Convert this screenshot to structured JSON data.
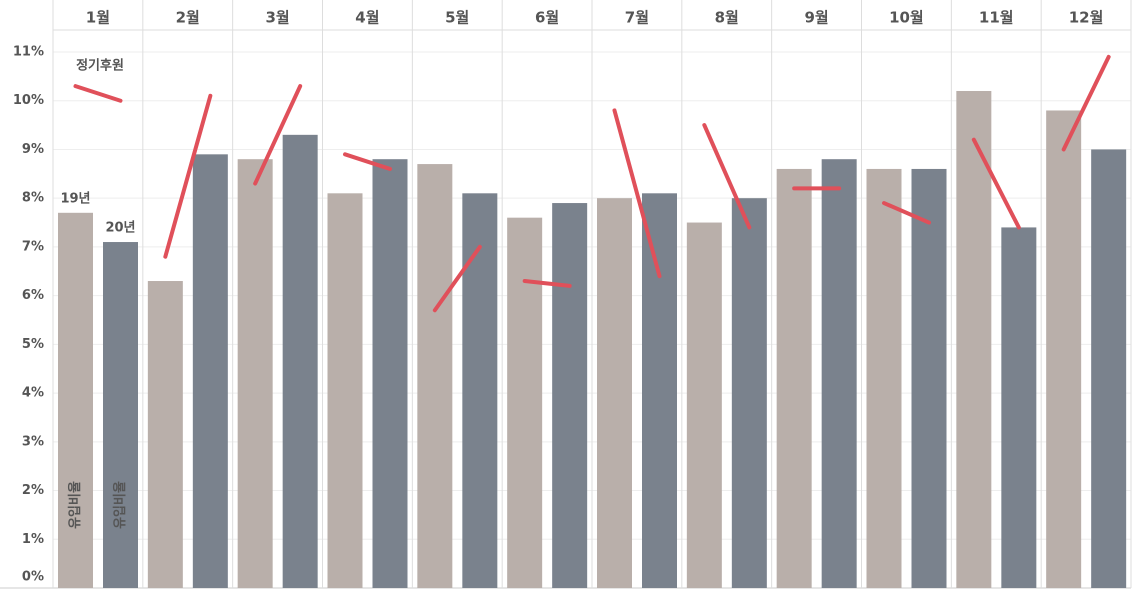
{
  "chart_data": {
    "type": "bar",
    "categories": [
      "1월",
      "2월",
      "3월",
      "4월",
      "5월",
      "6월",
      "7월",
      "8월",
      "9월",
      "10월",
      "11월",
      "12월"
    ],
    "series": [
      {
        "name": "19년",
        "color": "#b9afaa",
        "values": [
          7.7,
          6.3,
          8.8,
          8.1,
          8.7,
          7.6,
          8.0,
          7.5,
          8.6,
          8.6,
          10.2,
          9.8
        ]
      },
      {
        "name": "20년",
        "color": "#7a828d",
        "values": [
          7.1,
          8.9,
          9.3,
          8.8,
          8.1,
          7.9,
          8.1,
          8.0,
          8.8,
          8.6,
          7.4,
          9.0
        ]
      },
      {
        "name": "정기후원",
        "color": "#e0505a",
        "values": [
          [
            10.3,
            10.0
          ],
          [
            6.8,
            10.1
          ],
          [
            8.3,
            10.3
          ],
          [
            8.9,
            8.6
          ],
          [
            5.7,
            7.0
          ],
          [
            6.3,
            6.2
          ],
          [
            9.8,
            6.4
          ],
          [
            9.5,
            7.4
          ],
          [
            8.2,
            8.2
          ],
          [
            7.9,
            7.5
          ],
          [
            9.2,
            7.4
          ],
          [
            9.0,
            10.9
          ]
        ]
      }
    ],
    "bar_caption": "유입비율",
    "ylim": [
      0,
      11
    ],
    "yticks": [
      {
        "value": 0,
        "label": "0%"
      },
      {
        "value": 1,
        "label": "1%"
      },
      {
        "value": 2,
        "label": "2%"
      },
      {
        "value": 3,
        "label": "3%"
      },
      {
        "value": 4,
        "label": "4%"
      },
      {
        "value": 5,
        "label": "5%"
      },
      {
        "value": 6,
        "label": "6%"
      },
      {
        "value": 7,
        "label": "7%"
      },
      {
        "value": 8,
        "label": "8%"
      },
      {
        "value": 9,
        "label": "9%"
      },
      {
        "value": 10,
        "label": "10%"
      },
      {
        "value": 11,
        "label": "11%"
      }
    ],
    "grid": true
  }
}
